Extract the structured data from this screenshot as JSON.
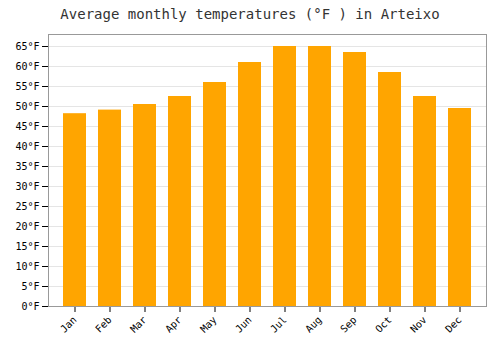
{
  "chart_data": {
    "type": "bar",
    "title": "Average monthly temperatures (°F ) in Arteixo",
    "categories": [
      "Jan",
      "Feb",
      "Mar",
      "Apr",
      "May",
      "Jun",
      "Jul",
      "Aug",
      "Sep",
      "Oct",
      "Nov",
      "Dec"
    ],
    "values": [
      48.2,
      49.1,
      50.5,
      52.5,
      56.0,
      61.0,
      65.0,
      65.0,
      63.5,
      58.5,
      52.5,
      49.5
    ],
    "color": "#FFA500",
    "ylim": [
      0,
      68
    ],
    "yticks": [
      {
        "value": 0,
        "label": "0°F"
      },
      {
        "value": 5,
        "label": "5°F"
      },
      {
        "value": 10,
        "label": "10°F"
      },
      {
        "value": 15,
        "label": "15°F"
      },
      {
        "value": 20,
        "label": "20°F"
      },
      {
        "value": 25,
        "label": "25°F"
      },
      {
        "value": 30,
        "label": "30°F"
      },
      {
        "value": 35,
        "label": "35°F"
      },
      {
        "value": 40,
        "label": "40°F"
      },
      {
        "value": 45,
        "label": "45°F"
      },
      {
        "value": 50,
        "label": "50°F"
      },
      {
        "value": 55,
        "label": "55°F"
      },
      {
        "value": 60,
        "label": "60°F"
      },
      {
        "value": 65,
        "label": "65°F"
      }
    ],
    "grid": true
  }
}
